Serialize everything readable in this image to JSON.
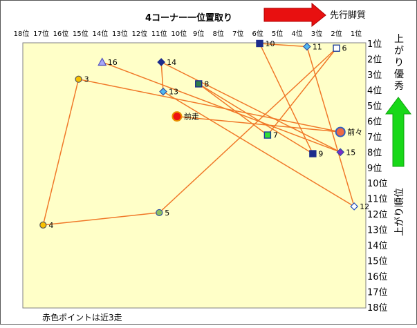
{
  "chart_data": {
    "type": "scatter",
    "title": "4コーナー一位置取り",
    "x_axis": {
      "label": "4コーナー一位置取り",
      "range": [
        18,
        1
      ],
      "tick_labels": [
        "18位",
        "17位",
        "16位",
        "15位",
        "14位",
        "13位",
        "12位",
        "11位",
        "10位",
        "9位",
        "8位",
        "7位",
        "6位",
        "5位",
        "4位",
        "3位",
        "2位",
        "1位"
      ]
    },
    "y_axis": {
      "label": "上がり順位",
      "range": [
        1,
        18
      ],
      "tick_labels": [
        "1位",
        "2位",
        "3位",
        "4位",
        "5位",
        "6位",
        "7位",
        "8位",
        "9位",
        "10位",
        "11位",
        "12位",
        "13位",
        "14位",
        "15位",
        "16位",
        "17位",
        "18位"
      ]
    },
    "arrow_right_label": "先行脚質",
    "arrow_up_label": "上がり優秀",
    "footnote": "赤色ポイントは近3走",
    "grid": false,
    "colors": {
      "plot_bg": "#FFFFC8",
      "line": "#F07828",
      "arrow_red": "#E81010",
      "arrow_green": "#18D818"
    },
    "points": [
      {
        "label": "前走",
        "x": 10.1,
        "y": 5.7,
        "shape": "circle-big",
        "fill": "#EE1111",
        "stroke": "#E89000"
      },
      {
        "label": "前々",
        "x": 1.8,
        "y": 6.7,
        "shape": "circle-big",
        "fill": "#EE6A44",
        "stroke": "#3060C0"
      },
      {
        "label": "3",
        "x": 15.1,
        "y": 3.3,
        "shape": "circle",
        "fill": "#F8C000",
        "stroke": "#555555"
      },
      {
        "label": "4",
        "x": 16.9,
        "y": 12.7,
        "shape": "circle",
        "fill": "#F8C000",
        "stroke": "#555555"
      },
      {
        "label": "5",
        "x": 11.0,
        "y": 11.9,
        "shape": "circle",
        "fill": "#8CC060",
        "stroke": "#3050A0"
      },
      {
        "label": "6",
        "x": 2.0,
        "y": 1.3,
        "shape": "square-hollow",
        "fill": "#FFFFFF",
        "stroke": "#1C3C9C"
      },
      {
        "label": "7",
        "x": 5.5,
        "y": 6.9,
        "shape": "square",
        "fill": "#33DD33",
        "stroke": "#1C3C9C"
      },
      {
        "label": "8",
        "x": 9.0,
        "y": 3.6,
        "shape": "square",
        "fill": "#2E7D4A",
        "stroke": "#1C2C8C"
      },
      {
        "label": "9",
        "x": 3.2,
        "y": 8.1,
        "shape": "square",
        "fill": "#1C2C8C",
        "stroke": "#1C2C8C"
      },
      {
        "label": "10",
        "x": 5.9,
        "y": 1.0,
        "shape": "square",
        "fill": "#1C2C8C",
        "stroke": "#1C2C8C"
      },
      {
        "label": "11",
        "x": 3.5,
        "y": 1.2,
        "shape": "diamond",
        "fill": "#50B8F0",
        "stroke": "#3050A0"
      },
      {
        "label": "12",
        "x": 1.1,
        "y": 11.5,
        "shape": "diamond-hollow",
        "fill": "#FFFFFF",
        "stroke": "#2050C0"
      },
      {
        "label": "13",
        "x": 10.8,
        "y": 4.1,
        "shape": "diamond",
        "fill": "#50B8F0",
        "stroke": "#3050A0"
      },
      {
        "label": "14",
        "x": 10.9,
        "y": 2.2,
        "shape": "diamond",
        "fill": "#1C2C8C",
        "stroke": "#1C2C8C"
      },
      {
        "label": "15",
        "x": 1.8,
        "y": 8.0,
        "shape": "diamond",
        "fill": "#7A2CC8",
        "stroke": "#3050A0"
      },
      {
        "label": "16",
        "x": 13.9,
        "y": 2.2,
        "shape": "triangle",
        "fill": "#A8A8F8",
        "stroke": "#5050C0"
      }
    ],
    "path_order": [
      "前走",
      "前々",
      "3",
      "4",
      "5",
      "6",
      "7",
      "8",
      "9",
      "10",
      "11",
      "12",
      "13",
      "14",
      "15",
      "16"
    ]
  }
}
